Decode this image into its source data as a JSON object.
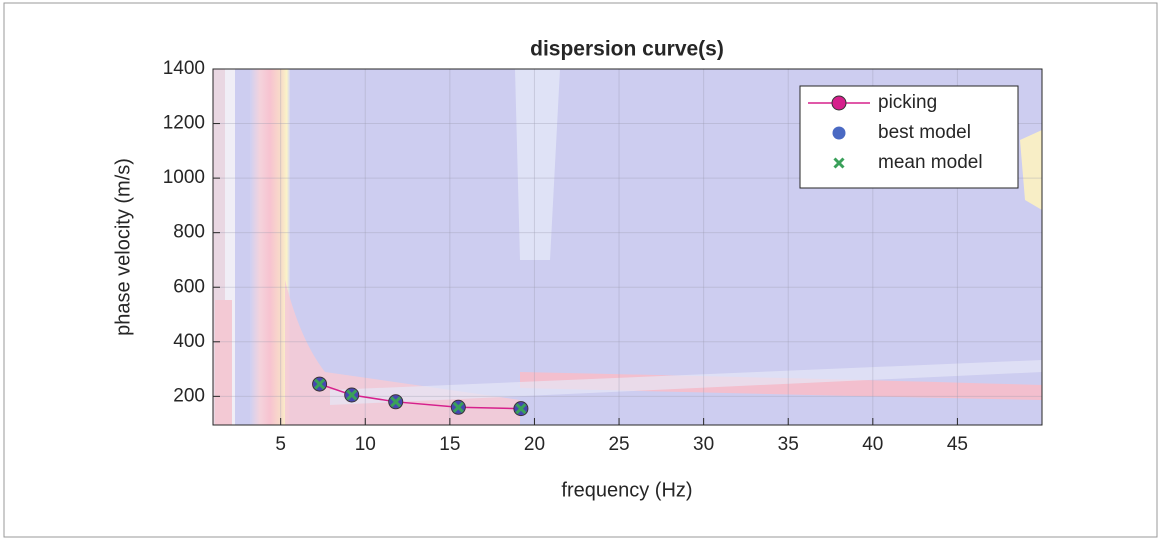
{
  "chart_data": {
    "type": "line",
    "title": "dispersion curve(s)",
    "x_label": "frequency (Hz)",
    "y_label": "phase velocity (m/s)",
    "x": [
      7.3,
      9.2,
      11.8,
      15.5,
      19.2
    ],
    "series": [
      {
        "name": "picking",
        "color": "#d6208c",
        "values": [
          245,
          205,
          180,
          160,
          155
        ]
      },
      {
        "name": "best model",
        "color": "#2a4fb8",
        "values": [
          245,
          205,
          180,
          160,
          155
        ]
      },
      {
        "name": "mean model",
        "color": "#3aa05a",
        "values": [
          245,
          205,
          180,
          160,
          155
        ]
      }
    ],
    "xlim": [
      1,
      50
    ],
    "ylim": [
      95,
      1400
    ],
    "xticks": [
      5,
      10,
      15,
      20,
      25,
      30,
      35,
      40,
      45
    ],
    "yticks": [
      200,
      400,
      600,
      800,
      1000,
      1200,
      1400
    ],
    "grid": true,
    "legend": "upper right"
  }
}
